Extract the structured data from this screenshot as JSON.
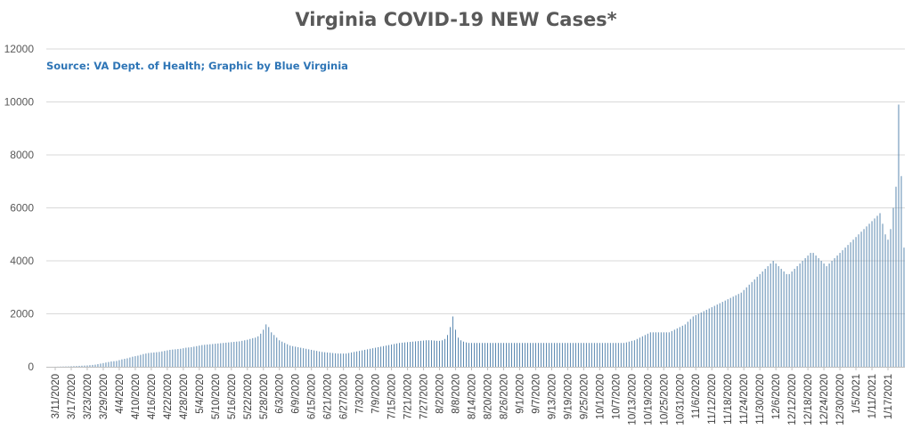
{
  "chart_data": {
    "type": "bar",
    "title": "Virginia COVID-19 NEW Cases*",
    "annotation": "Source: VA Dept. of Health; Graphic by Blue Virginia",
    "xlabel": "",
    "ylabel": "",
    "ylim": [
      0,
      12000
    ],
    "yticks": [
      0,
      2000,
      4000,
      6000,
      8000,
      10000,
      12000
    ],
    "grid": true,
    "legend": "none",
    "bar_color": "#4a7ca8",
    "x_tick_labels": [
      "3/11/2020",
      "3/17/2020",
      "3/23/2020",
      "3/29/2020",
      "4/4/2020",
      "4/10/2020",
      "4/16/2020",
      "4/22/2020",
      "4/28/2020",
      "5/4/2020",
      "5/10/2020",
      "5/16/2020",
      "5/22/2020",
      "5/28/2020",
      "6/3/2020",
      "6/9/2020",
      "6/15/2020",
      "6/21/2020",
      "6/27/2020",
      "7/3/2020",
      "7/9/2020",
      "7/15/2020",
      "7/21/2020",
      "7/27/2020",
      "8/2/2020",
      "8/8/2020",
      "8/14/2020",
      "8/20/2020",
      "8/26/2020",
      "9/1/2020",
      "9/7/2020",
      "9/13/2020",
      "9/19/2020",
      "9/25/2020",
      "10/1/2020",
      "10/7/2020",
      "10/13/2020",
      "10/19/2020",
      "10/25/2020",
      "10/31/2020",
      "11/6/2020",
      "11/12/2020",
      "11/18/2020",
      "11/24/2020",
      "11/30/2020",
      "12/6/2020",
      "12/12/2020",
      "12/18/2020",
      "12/24/2020",
      "12/30/2020",
      "1/5/2021",
      "1/11/2021",
      "1/17/2021"
    ],
    "values": [
      2,
      5,
      8,
      10,
      12,
      15,
      20,
      25,
      30,
      35,
      40,
      45,
      50,
      60,
      70,
      80,
      100,
      120,
      140,
      160,
      180,
      200,
      210,
      220,
      250,
      280,
      300,
      320,
      350,
      380,
      400,
      420,
      450,
      480,
      500,
      520,
      530,
      540,
      550,
      560,
      580,
      600,
      620,
      640,
      650,
      660,
      670,
      680,
      700,
      720,
      730,
      740,
      760,
      780,
      800,
      820,
      830,
      840,
      850,
      860,
      870,
      880,
      890,
      900,
      910,
      920,
      930,
      940,
      950,
      960,
      980,
      1000,
      1020,
      1050,
      1080,
      1100,
      1150,
      1250,
      1400,
      1600,
      1500,
      1300,
      1200,
      1100,
      1000,
      950,
      900,
      850,
      800,
      780,
      760,
      740,
      720,
      700,
      680,
      660,
      640,
      620,
      600,
      580,
      560,
      550,
      540,
      530,
      520,
      510,
      500,
      500,
      500,
      500,
      520,
      540,
      560,
      580,
      600,
      620,
      640,
      660,
      680,
      700,
      720,
      740,
      760,
      780,
      800,
      820,
      840,
      860,
      880,
      900,
      910,
      920,
      930,
      940,
      950,
      960,
      970,
      980,
      990,
      1000,
      1000,
      1000,
      990,
      980,
      980,
      1000,
      1050,
      1200,
      1500,
      1900,
      1400,
      1100,
      1000,
      950,
      920,
      900,
      900,
      900,
      900,
      900,
      900,
      900,
      900,
      900,
      900,
      900,
      900,
      900,
      900,
      900,
      900,
      900,
      900,
      900,
      900,
      900,
      900,
      900,
      900,
      900,
      900,
      900,
      900,
      900,
      900,
      900,
      900,
      900,
      900,
      900,
      900,
      900,
      900,
      900,
      900,
      900,
      900,
      900,
      900,
      900,
      900,
      900,
      900,
      900,
      900,
      900,
      900,
      900,
      900,
      900,
      900,
      900,
      900,
      900,
      920,
      950,
      980,
      1000,
      1050,
      1100,
      1150,
      1200,
      1250,
      1300,
      1300,
      1300,
      1300,
      1300,
      1300,
      1300,
      1300,
      1350,
      1400,
      1450,
      1500,
      1550,
      1600,
      1700,
      1800,
      1900,
      1950,
      2000,
      2050,
      2100,
      2150,
      2200,
      2250,
      2300,
      2350,
      2400,
      2450,
      2500,
      2550,
      2600,
      2650,
      2700,
      2750,
      2800,
      2900,
      3000,
      3100,
      3200,
      3300,
      3400,
      3500,
      3600,
      3700,
      3800,
      3900,
      4000,
      3900,
      3800,
      3700,
      3600,
      3500,
      3500,
      3600,
      3700,
      3800,
      3900,
      4000,
      4100,
      4200,
      4300,
      4300,
      4200,
      4100,
      4000,
      3900,
      3800,
      3900,
      4000,
      4100,
      4200,
      4300,
      4400,
      4500,
      4600,
      4700,
      4800,
      4900,
      5000,
      5100,
      5200,
      5300,
      5400,
      5500,
      5600,
      5700,
      5800,
      5400,
      5000,
      4800,
      5200,
      6000,
      6800,
      9900,
      7200,
      4500
    ]
  }
}
